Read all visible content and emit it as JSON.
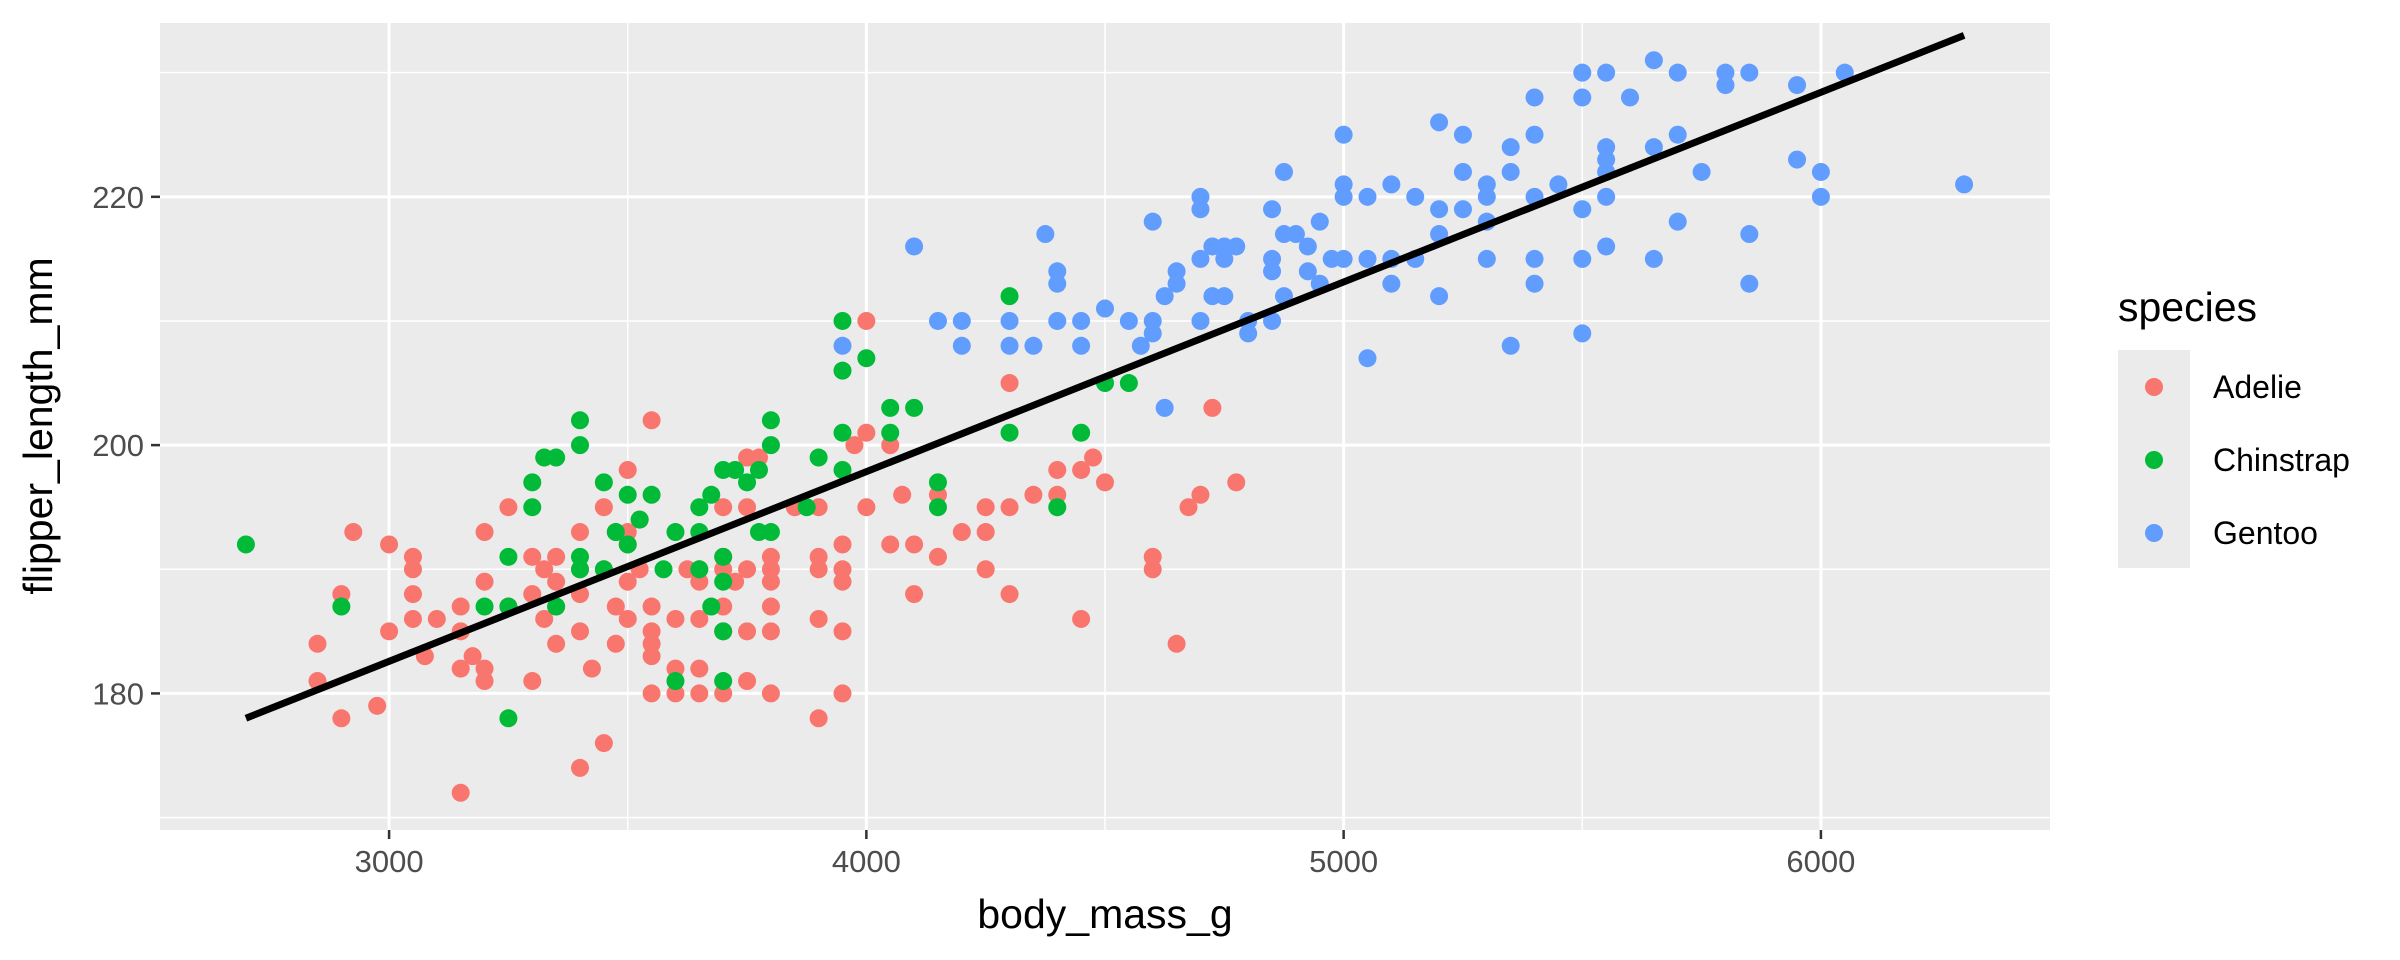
{
  "chart_data": {
    "type": "scatter",
    "title": "",
    "xlabel": "body_mass_g",
    "ylabel": "flipper_length_mm",
    "xlim": [
      2520,
      6480
    ],
    "ylim": [
      169,
      234
    ],
    "x_ticks": [
      3000,
      4000,
      5000,
      6000
    ],
    "y_ticks": [
      180,
      200,
      220
    ],
    "grid": true,
    "legend": {
      "title": "species",
      "placement": "right"
    },
    "series": [
      {
        "name": "Adelie",
        "color": "#F8766D",
        "points": [
          [
            2850,
            184
          ],
          [
            2850,
            181
          ],
          [
            2900,
            178
          ],
          [
            2900,
            188
          ],
          [
            2925,
            193
          ],
          [
            2975,
            179
          ],
          [
            3000,
            192
          ],
          [
            3000,
            185
          ],
          [
            3050,
            190
          ],
          [
            3050,
            191
          ],
          [
            3050,
            186
          ],
          [
            3050,
            188
          ],
          [
            3075,
            183
          ],
          [
            3100,
            186
          ],
          [
            3150,
            187
          ],
          [
            3150,
            185
          ],
          [
            3150,
            182
          ],
          [
            3150,
            172
          ],
          [
            3175,
            183
          ],
          [
            3200,
            181
          ],
          [
            3200,
            193
          ],
          [
            3200,
            189
          ],
          [
            3200,
            182
          ],
          [
            3250,
            195
          ],
          [
            3250,
            187
          ],
          [
            3300,
            191
          ],
          [
            3300,
            188
          ],
          [
            3300,
            181
          ],
          [
            3325,
            186
          ],
          [
            3325,
            190
          ],
          [
            3350,
            191
          ],
          [
            3350,
            189
          ],
          [
            3350,
            184
          ],
          [
            3350,
            187
          ],
          [
            3400,
            188
          ],
          [
            3400,
            193
          ],
          [
            3400,
            185
          ],
          [
            3400,
            174
          ],
          [
            3400,
            190
          ],
          [
            3425,
            182
          ],
          [
            3450,
            195
          ],
          [
            3450,
            176
          ],
          [
            3450,
            190
          ],
          [
            3475,
            193
          ],
          [
            3475,
            184
          ],
          [
            3475,
            187
          ],
          [
            3500,
            198
          ],
          [
            3500,
            193
          ],
          [
            3500,
            186
          ],
          [
            3500,
            189
          ],
          [
            3500,
            192
          ],
          [
            3525,
            190
          ],
          [
            3525,
            194
          ],
          [
            3550,
            187
          ],
          [
            3550,
            180
          ],
          [
            3550,
            184
          ],
          [
            3550,
            202
          ],
          [
            3550,
            185
          ],
          [
            3550,
            183
          ],
          [
            3600,
            180
          ],
          [
            3600,
            182
          ],
          [
            3600,
            186
          ],
          [
            3625,
            190
          ],
          [
            3650,
            190
          ],
          [
            3650,
            186
          ],
          [
            3650,
            182
          ],
          [
            3650,
            180
          ],
          [
            3650,
            189
          ],
          [
            3700,
            190
          ],
          [
            3700,
            195
          ],
          [
            3700,
            187
          ],
          [
            3700,
            180
          ],
          [
            3700,
            185
          ],
          [
            3700,
            191
          ],
          [
            3725,
            189
          ],
          [
            3750,
            185
          ],
          [
            3750,
            190
          ],
          [
            3750,
            199
          ],
          [
            3750,
            195
          ],
          [
            3750,
            181
          ],
          [
            3775,
            199
          ],
          [
            3800,
            191
          ],
          [
            3800,
            187
          ],
          [
            3800,
            180
          ],
          [
            3800,
            189
          ],
          [
            3800,
            185
          ],
          [
            3800,
            190
          ],
          [
            3850,
            195
          ],
          [
            3900,
            190
          ],
          [
            3900,
            191
          ],
          [
            3900,
            186
          ],
          [
            3900,
            195
          ],
          [
            3900,
            178
          ],
          [
            3950,
            190
          ],
          [
            3950,
            189
          ],
          [
            3950,
            185
          ],
          [
            3950,
            180
          ],
          [
            3950,
            192
          ],
          [
            3975,
            200
          ],
          [
            4000,
            201
          ],
          [
            4000,
            195
          ],
          [
            4000,
            210
          ],
          [
            4050,
            200
          ],
          [
            4050,
            192
          ],
          [
            4075,
            196
          ],
          [
            4100,
            188
          ],
          [
            4100,
            192
          ],
          [
            4150,
            191
          ],
          [
            4150,
            196
          ],
          [
            4200,
            193
          ],
          [
            4250,
            195
          ],
          [
            4250,
            193
          ],
          [
            4250,
            190
          ],
          [
            4300,
            195
          ],
          [
            4300,
            188
          ],
          [
            4300,
            205
          ],
          [
            4350,
            196
          ],
          [
            4400,
            198
          ],
          [
            4400,
            196
          ],
          [
            4450,
            186
          ],
          [
            4450,
            198
          ],
          [
            4475,
            199
          ],
          [
            4500,
            197
          ],
          [
            4600,
            191
          ],
          [
            4600,
            190
          ],
          [
            4650,
            184
          ],
          [
            4675,
            195
          ],
          [
            4700,
            196
          ],
          [
            4725,
            203
          ],
          [
            4775,
            197
          ]
        ]
      },
      {
        "name": "Chinstrap",
        "color": "#00BA38",
        "points": [
          [
            2700,
            192
          ],
          [
            2900,
            187
          ],
          [
            3200,
            187
          ],
          [
            3250,
            178
          ],
          [
            3250,
            191
          ],
          [
            3250,
            187
          ],
          [
            3300,
            195
          ],
          [
            3300,
            197
          ],
          [
            3325,
            199
          ],
          [
            3350,
            187
          ],
          [
            3400,
            191
          ],
          [
            3400,
            190
          ],
          [
            3400,
            202
          ],
          [
            3400,
            200
          ],
          [
            3450,
            197
          ],
          [
            3450,
            190
          ],
          [
            3500,
            196
          ],
          [
            3500,
            192
          ],
          [
            3525,
            194
          ],
          [
            3550,
            196
          ],
          [
            3575,
            190
          ],
          [
            3600,
            193
          ],
          [
            3600,
            181
          ],
          [
            3650,
            195
          ],
          [
            3650,
            193
          ],
          [
            3675,
            196
          ],
          [
            3700,
            198
          ],
          [
            3700,
            191
          ],
          [
            3700,
            185
          ],
          [
            3700,
            181
          ],
          [
            3725,
            198
          ],
          [
            3750,
            197
          ],
          [
            3775,
            198
          ],
          [
            3775,
            193
          ],
          [
            3800,
            202
          ],
          [
            3800,
            193
          ],
          [
            3800,
            200
          ],
          [
            3875,
            195
          ],
          [
            3900,
            199
          ],
          [
            3950,
            201
          ],
          [
            3950,
            206
          ],
          [
            3950,
            210
          ],
          [
            3950,
            198
          ],
          [
            4000,
            207
          ],
          [
            4050,
            201
          ],
          [
            4050,
            203
          ],
          [
            4100,
            203
          ],
          [
            4150,
            197
          ],
          [
            4150,
            195
          ],
          [
            4300,
            212
          ],
          [
            4300,
            201
          ],
          [
            4400,
            195
          ],
          [
            4450,
            201
          ],
          [
            4500,
            205
          ],
          [
            4550,
            205
          ],
          [
            3675,
            187
          ],
          [
            3650,
            190
          ],
          [
            3700,
            189
          ],
          [
            3475,
            193
          ],
          [
            3350,
            199
          ]
        ]
      },
      {
        "name": "Gentoo",
        "color": "#619CFF",
        "points": [
          [
            3950,
            208
          ],
          [
            4100,
            216
          ],
          [
            4150,
            210
          ],
          [
            4200,
            210
          ],
          [
            4200,
            208
          ],
          [
            4300,
            210
          ],
          [
            4300,
            208
          ],
          [
            4350,
            208
          ],
          [
            4375,
            217
          ],
          [
            4400,
            214
          ],
          [
            4400,
            213
          ],
          [
            4400,
            210
          ],
          [
            4450,
            210
          ],
          [
            4450,
            208
          ],
          [
            4500,
            211
          ],
          [
            4550,
            210
          ],
          [
            4575,
            208
          ],
          [
            4600,
            218
          ],
          [
            4600,
            210
          ],
          [
            4600,
            209
          ],
          [
            4625,
            212
          ],
          [
            4625,
            203
          ],
          [
            4650,
            214
          ],
          [
            4650,
            213
          ],
          [
            4700,
            220
          ],
          [
            4700,
            219
          ],
          [
            4700,
            215
          ],
          [
            4700,
            210
          ],
          [
            4725,
            216
          ],
          [
            4725,
            212
          ],
          [
            4750,
            216
          ],
          [
            4750,
            215
          ],
          [
            4750,
            212
          ],
          [
            4775,
            216
          ],
          [
            4800,
            210
          ],
          [
            4800,
            209
          ],
          [
            4850,
            219
          ],
          [
            4850,
            215
          ],
          [
            4850,
            214
          ],
          [
            4850,
            210
          ],
          [
            4875,
            222
          ],
          [
            4875,
            217
          ],
          [
            4875,
            212
          ],
          [
            4900,
            217
          ],
          [
            4925,
            216
          ],
          [
            4925,
            214
          ],
          [
            4950,
            218
          ],
          [
            4950,
            213
          ],
          [
            4975,
            215
          ],
          [
            5000,
            225
          ],
          [
            5000,
            221
          ],
          [
            5000,
            220
          ],
          [
            5000,
            215
          ],
          [
            5050,
            220
          ],
          [
            5050,
            215
          ],
          [
            5050,
            207
          ],
          [
            5100,
            221
          ],
          [
            5100,
            215
          ],
          [
            5100,
            213
          ],
          [
            5150,
            220
          ],
          [
            5150,
            215
          ],
          [
            5200,
            226
          ],
          [
            5200,
            219
          ],
          [
            5200,
            217
          ],
          [
            5200,
            212
          ],
          [
            5250,
            225
          ],
          [
            5250,
            222
          ],
          [
            5250,
            219
          ],
          [
            5300,
            221
          ],
          [
            5300,
            220
          ],
          [
            5300,
            218
          ],
          [
            5300,
            215
          ],
          [
            5350,
            224
          ],
          [
            5350,
            222
          ],
          [
            5350,
            208
          ],
          [
            5400,
            228
          ],
          [
            5400,
            225
          ],
          [
            5400,
            220
          ],
          [
            5400,
            215
          ],
          [
            5400,
            213
          ],
          [
            5450,
            221
          ],
          [
            5500,
            230
          ],
          [
            5500,
            228
          ],
          [
            5500,
            219
          ],
          [
            5500,
            215
          ],
          [
            5500,
            209
          ],
          [
            5550,
            230
          ],
          [
            5550,
            224
          ],
          [
            5550,
            223
          ],
          [
            5550,
            222
          ],
          [
            5550,
            220
          ],
          [
            5550,
            216
          ],
          [
            5600,
            228
          ],
          [
            5650,
            231
          ],
          [
            5650,
            224
          ],
          [
            5650,
            215
          ],
          [
            5700,
            230
          ],
          [
            5700,
            225
          ],
          [
            5700,
            218
          ],
          [
            5750,
            222
          ],
          [
            5800,
            230
          ],
          [
            5800,
            229
          ],
          [
            5850,
            230
          ],
          [
            5850,
            217
          ],
          [
            5850,
            213
          ],
          [
            5950,
            229
          ],
          [
            5950,
            223
          ],
          [
            6000,
            222
          ],
          [
            6000,
            220
          ],
          [
            6050,
            230
          ],
          [
            6300,
            221
          ]
        ]
      }
    ],
    "trend_line": {
      "color": "#000000",
      "points": [
        [
          2700,
          178
        ],
        [
          6300,
          233
        ]
      ]
    }
  }
}
